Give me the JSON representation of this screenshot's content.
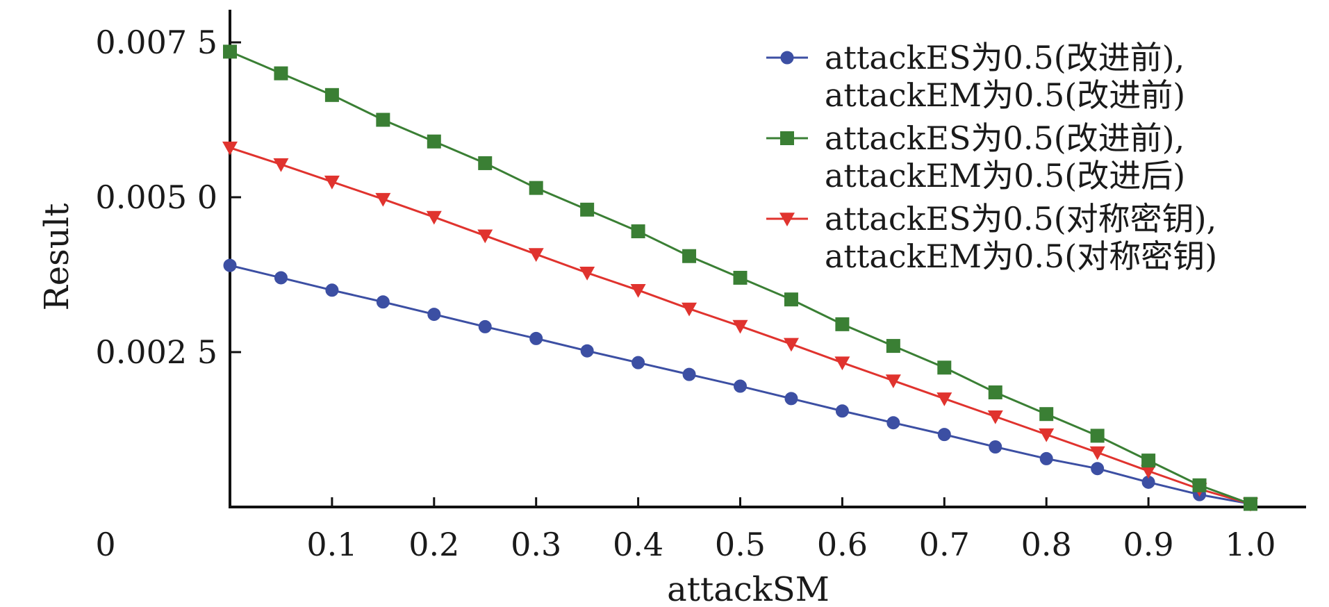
{
  "chart_data": {
    "type": "line",
    "xlabel": "attackSM",
    "ylabel": "Result",
    "origin_label": "0",
    "x_ticks": [
      0.1,
      0.2,
      0.3,
      0.4,
      0.5,
      0.6,
      0.7,
      0.8,
      0.9,
      1.0
    ],
    "x_tick_labels": [
      "0.1",
      "0.2",
      "0.3",
      "0.4",
      "0.5",
      "0.6",
      "0.7",
      "0.8",
      "0.9",
      "1.0"
    ],
    "y_ticks": [
      0.0025,
      0.005,
      0.0075
    ],
    "y_tick_labels": [
      "0.002 5",
      "0.005 0",
      "0.007 5"
    ],
    "xlim": [
      0,
      1.05
    ],
    "ylim": [
      0,
      0.0078
    ],
    "x": [
      0,
      0.05,
      0.1,
      0.15,
      0.2,
      0.25,
      0.3,
      0.35,
      0.4,
      0.45,
      0.5,
      0.55,
      0.6,
      0.65,
      0.7,
      0.75,
      0.8,
      0.85,
      0.9,
      0.95,
      1.0
    ],
    "legend_position": "top-right",
    "grid": false,
    "series": [
      {
        "label_lines": [
          "attackES为0.5(改进前),",
          "attackEM为0.5(改进前)"
        ],
        "color": "#3c4fa3",
        "marker": "circle",
        "values": [
          0.0039,
          0.0037,
          0.0035,
          0.00331,
          0.00311,
          0.00291,
          0.00272,
          0.00252,
          0.00233,
          0.00214,
          0.00195,
          0.00175,
          0.00155,
          0.00136,
          0.00117,
          0.00097,
          0.00078,
          0.00062,
          0.0004,
          0.0002,
          5e-05
        ]
      },
      {
        "label_lines": [
          "attackES为0.5(改进前),",
          "attackEM为0.5(改进后)"
        ],
        "color": "#3a7f34",
        "marker": "square",
        "values": [
          0.00735,
          0.007,
          0.00665,
          0.00625,
          0.0059,
          0.00555,
          0.00515,
          0.0048,
          0.00445,
          0.00405,
          0.0037,
          0.00335,
          0.00295,
          0.0026,
          0.00225,
          0.00185,
          0.0015,
          0.00115,
          0.00075,
          0.00035,
          5e-05
        ]
      },
      {
        "label_lines": [
          "attackES为0.5(对称密钥),",
          "attackEM为0.5(对称密钥)"
        ],
        "color": "#e0332e",
        "marker": "triangle-down",
        "values": [
          0.0058,
          0.00553,
          0.00525,
          0.00497,
          0.00468,
          0.00438,
          0.00408,
          0.00378,
          0.0035,
          0.0032,
          0.00292,
          0.00263,
          0.00233,
          0.00204,
          0.00175,
          0.00146,
          0.00117,
          0.00088,
          0.00058,
          0.00029,
          5e-05
        ]
      }
    ]
  }
}
